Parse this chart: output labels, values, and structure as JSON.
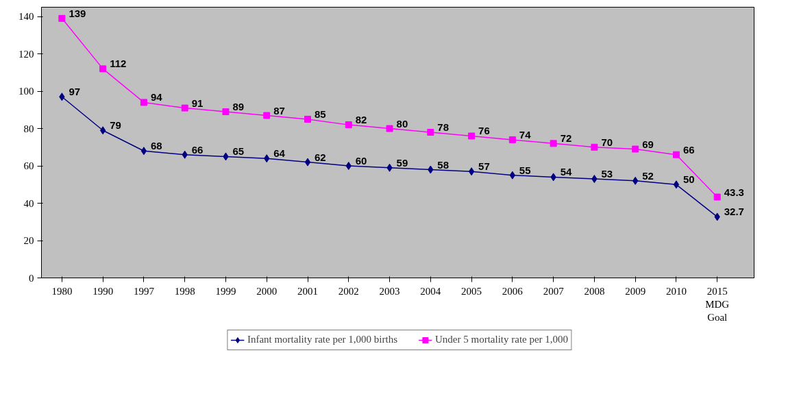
{
  "chart_data": {
    "type": "line",
    "categories": [
      "1980",
      "1990",
      "1997",
      "1998",
      "1999",
      "2000",
      "2001",
      "2002",
      "2003",
      "2004",
      "2005",
      "2006",
      "2007",
      "2008",
      "2009",
      "2010",
      "2015\nMDG\nGoal"
    ],
    "series": [
      {
        "name": "Infant mortality rate per 1,000 births",
        "color": "#000080",
        "marker": "diamond",
        "values": [
          97,
          79,
          68,
          66,
          65,
          64,
          62,
          60,
          59,
          58,
          57,
          55,
          54,
          53,
          52,
          50,
          32.7
        ]
      },
      {
        "name": "Under 5 mortality rate per 1,000",
        "color": "#ff00ff",
        "marker": "square",
        "values": [
          139,
          112,
          94,
          91,
          89,
          87,
          85,
          82,
          80,
          78,
          76,
          74,
          72,
          70,
          69,
          66,
          43.3
        ]
      }
    ],
    "ylim": [
      0,
      145
    ],
    "yticks": [
      0,
      20,
      40,
      60,
      80,
      100,
      120,
      140
    ],
    "grid": false,
    "legend": "bottom",
    "data_labels": true,
    "line_style": "solid"
  }
}
